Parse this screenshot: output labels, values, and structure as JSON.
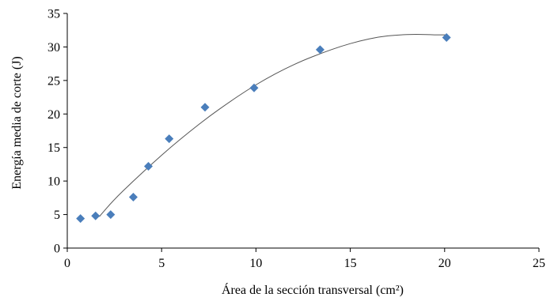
{
  "chart_data": {
    "type": "scatter",
    "title": "",
    "xlabel": "Área de la sección transversal (cm²)",
    "ylabel": "Energía media de corte (J)",
    "xlim": [
      0,
      25
    ],
    "ylim": [
      0,
      35
    ],
    "x_ticks": [
      0,
      5,
      10,
      15,
      20,
      25
    ],
    "y_ticks": [
      0,
      5,
      10,
      15,
      20,
      25,
      30,
      35
    ],
    "grid": false,
    "legend": "none",
    "marker": "diamond",
    "marker_color": "#4a7ebb",
    "trend_color": "#555555",
    "series": [
      {
        "x": [
          0.7,
          1.5,
          2.3,
          3.5,
          4.3,
          5.4,
          7.3,
          9.9,
          13.4,
          20.1
        ],
        "y": [
          4.4,
          4.8,
          5.0,
          7.6,
          12.2,
          16.3,
          21.0,
          23.9,
          29.6,
          31.4
        ]
      }
    ],
    "trendline": {
      "type": "polynomial",
      "x": [
        1.7,
        2.5,
        3.5,
        4.5,
        5.5,
        6.5,
        7.5,
        8.5,
        9.5,
        10.5,
        11.5,
        12.5,
        13.5,
        14.5,
        15.5,
        16.5,
        17.5,
        18.5,
        19.5,
        20.1
      ],
      "y": [
        4.7,
        7.3,
        10.0,
        12.6,
        15.1,
        17.4,
        19.6,
        21.6,
        23.5,
        25.2,
        26.7,
        28.0,
        29.1,
        30.1,
        30.9,
        31.5,
        31.8,
        31.9,
        31.8,
        31.8
      ]
    }
  }
}
